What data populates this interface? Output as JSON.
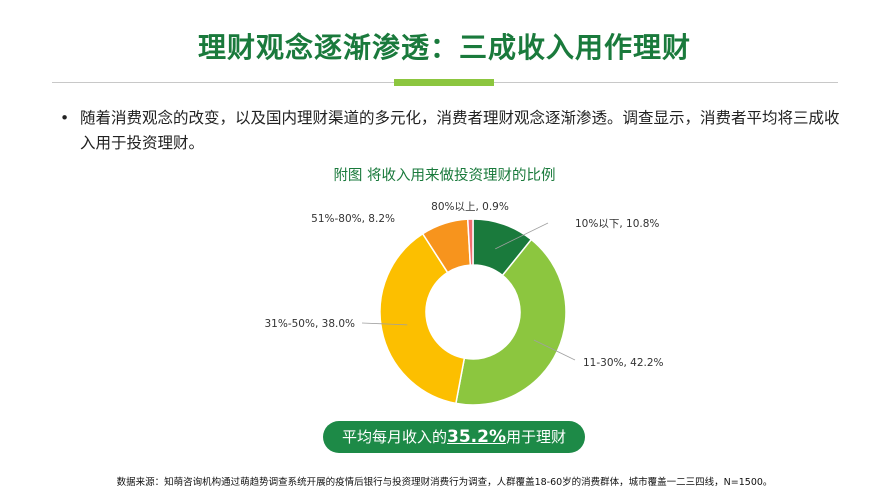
{
  "header": {
    "title": "理财观念逐渐渗透：三成收入用作理财"
  },
  "bullet": {
    "marker": "•",
    "text": "随着消费观念的改变，以及国内理财渠道的多元化，消费者理财观念逐渐渗透。调查显示，消费者平均将三成收入用于投资理财。"
  },
  "chart_data": {
    "type": "pie",
    "title": "附图 将收入用来做投资理财的比例",
    "donut": true,
    "labels": [
      "10%以下",
      "11-30%",
      "31%-50%",
      "51%-80%",
      "80%以上"
    ],
    "values": [
      10.8,
      42.2,
      38.0,
      8.2,
      0.9
    ],
    "data_labels": [
      "10%以下, 10.8%",
      "11-30%, 42.2%",
      "31%-50%, 38.0%",
      "51%-80%, 8.2%",
      "80%以上, 0.9%"
    ],
    "colors": [
      "#1a7a3c",
      "#8cc63f",
      "#fcbf00",
      "#f7941d",
      "#f26d6d"
    ]
  },
  "summary": {
    "prefix": "平均每月收入的",
    "highlight": "35.2%",
    "suffix": "用于理财"
  },
  "footer": {
    "source": "数据来源：知萌咨询机构通过萌趋势调查系统开展的疫情后银行与投资理财消费行为调查，人群覆盖18-60岁的消费群体，城市覆盖一二三四线，N=1500。"
  }
}
